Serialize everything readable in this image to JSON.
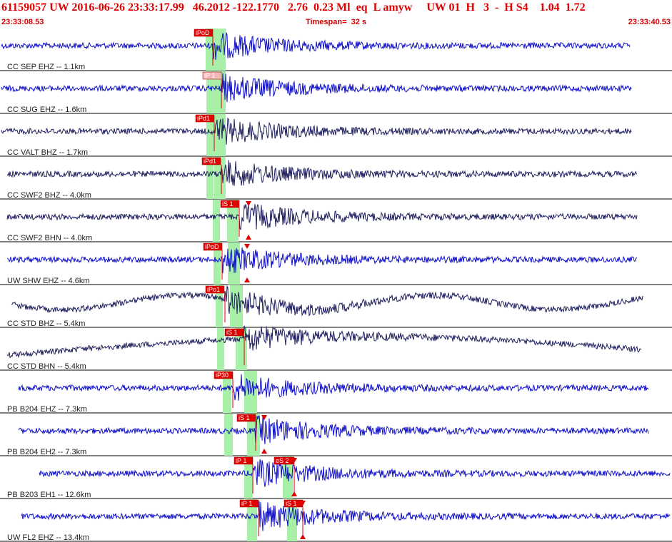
{
  "header": {
    "line": "61159057 UW 2016-06-26 23:33:17.99   46.2012 -122.1770   2.76  0.23 Ml  eq  L amyw     UW 01  H   3  -  H S4    1.04  1.72",
    "start_time": "23:33:08.53",
    "timespan": "Timespan=  32 s",
    "end_time": "23:33:40.53"
  },
  "colors": {
    "trace_blue": "#1010c8",
    "trace_navy": "#202060",
    "pick_red": "#e00000",
    "window_green": "#a8f0a8"
  },
  "traces": [
    {
      "label": "CC SEP EHZ -- 1.1km",
      "color": "blue",
      "amp": 1.0,
      "picks": [
        {
          "label": "iPoD"
        }
      ]
    },
    {
      "label": "CC SUG EHZ -- 1.6km",
      "color": "blue",
      "amp": 1.0,
      "picks": [
        {
          "label": "iP 1"
        }
      ]
    },
    {
      "label": "CC VALT BHZ -- 1.7km",
      "color": "navy",
      "amp": 1.0,
      "picks": [
        {
          "label": "iPd1"
        }
      ]
    },
    {
      "label": "CC SWF2 BHZ -- 4.0km",
      "color": "navy",
      "amp": 1.0,
      "picks": [
        {
          "label": "iPd1"
        }
      ]
    },
    {
      "label": "CC SWF2 BHN -- 4.0km",
      "color": "navy",
      "amp": 1.0,
      "picks": [
        {
          "label": "iS 1"
        }
      ]
    },
    {
      "label": "UW SHW EHZ -- 4.6km",
      "color": "blue",
      "amp": 1.0,
      "picks": [
        {
          "label": "iPoD"
        }
      ]
    },
    {
      "label": "CC STD BHZ -- 5.4km",
      "color": "navy",
      "amp": 1.0,
      "picks": [
        {
          "label": "iPo1"
        }
      ]
    },
    {
      "label": "CC STD BHN -- 5.4km",
      "color": "navy",
      "amp": 1.0,
      "picks": [
        {
          "label": "iS 1"
        }
      ]
    },
    {
      "label": "PB B204 EHZ -- 7.3km",
      "color": "blue",
      "amp": 1.0,
      "picks": [
        {
          "label": "iP30"
        }
      ]
    },
    {
      "label": "PB B204 EH2 -- 7.3km",
      "color": "blue",
      "amp": 1.0,
      "picks": [
        {
          "label": "iS 1"
        }
      ]
    },
    {
      "label": "PB B203 EH1 -- 12.6km",
      "color": "blue",
      "amp": 1.0,
      "picks": [
        {
          "label": "iP 1"
        },
        {
          "label": "eS 2"
        }
      ]
    },
    {
      "label": "UW FL2 EHZ -- 13.4km",
      "color": "blue",
      "amp": 1.0,
      "picks": [
        {
          "label": "iP 1"
        },
        {
          "label": "iS 1"
        }
      ]
    }
  ]
}
